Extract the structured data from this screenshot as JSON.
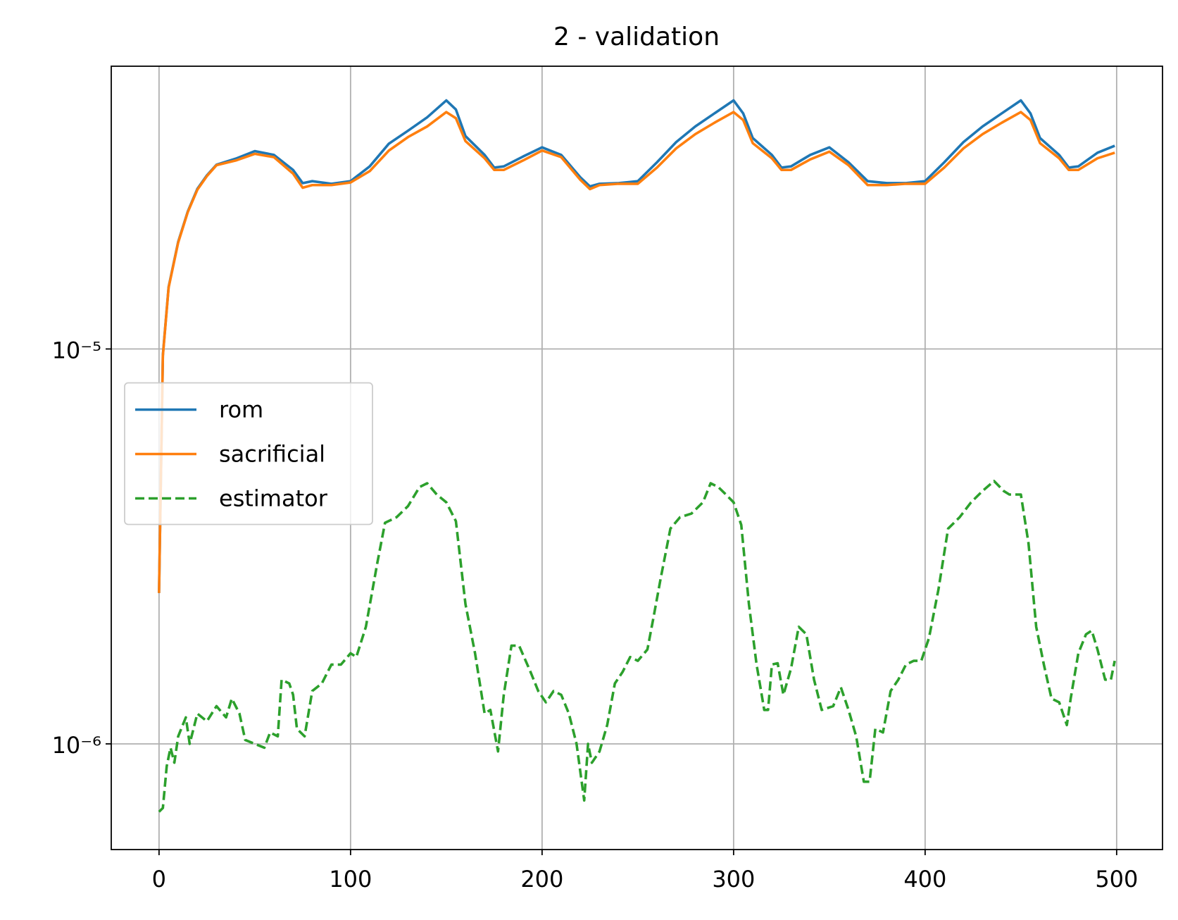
{
  "chart_data": {
    "type": "line",
    "title": "2 - validation",
    "xlim": [
      -24.95,
      523.95
    ],
    "xticks": [
      0,
      100,
      200,
      300,
      400,
      500
    ],
    "ylim": [
      5.4e-07,
      5.2e-05
    ],
    "log_y": true,
    "yticks": [
      {
        "value": 1e-06,
        "label": "10⁻⁶"
      },
      {
        "value": 1e-05,
        "label": "10⁻⁵"
      }
    ],
    "grid": true,
    "legend_loc": "center left",
    "series": [
      {
        "name": "rom",
        "color": "#1f77b4",
        "linestyle": "solid",
        "x": [
          0,
          2,
          5,
          10,
          15,
          20,
          25,
          30,
          40,
          50,
          60,
          70,
          75,
          80,
          90,
          100,
          110,
          120,
          130,
          140,
          150,
          155,
          160,
          170,
          175,
          180,
          190,
          200,
          210,
          220,
          225,
          230,
          240,
          250,
          260,
          270,
          280,
          290,
          300,
          305,
          310,
          320,
          325,
          330,
          340,
          350,
          360,
          370,
          380,
          390,
          400,
          410,
          420,
          430,
          440,
          450,
          455,
          460,
          470,
          475,
          480,
          490,
          499
        ],
        "values": [
          2.41e-06,
          9.65e-06,
          1.435e-05,
          1.868e-05,
          2.228e-05,
          2.543e-05,
          2.752e-05,
          2.928e-05,
          3.033e-05,
          3.17e-05,
          3.1e-05,
          2.84e-05,
          2.63e-05,
          2.66e-05,
          2.62e-05,
          2.66e-05,
          2.9e-05,
          3.31e-05,
          3.57e-05,
          3.86e-05,
          4.26e-05,
          4.04e-05,
          3.46e-05,
          3.1e-05,
          2.88e-05,
          2.9e-05,
          3.07e-05,
          3.24e-05,
          3.1e-05,
          2.72e-05,
          2.58e-05,
          2.62e-05,
          2.63e-05,
          2.66e-05,
          2.97e-05,
          3.34e-05,
          3.66e-05,
          3.95e-05,
          4.26e-05,
          3.95e-05,
          3.42e-05,
          3.1e-05,
          2.88e-05,
          2.9e-05,
          3.1e-05,
          3.24e-05,
          2.97e-05,
          2.66e-05,
          2.63e-05,
          2.63e-05,
          2.66e-05,
          2.97e-05,
          3.34e-05,
          3.66e-05,
          3.95e-05,
          4.26e-05,
          3.95e-05,
          3.42e-05,
          3.1e-05,
          2.88e-05,
          2.9e-05,
          3.14e-05,
          3.27e-05
        ]
      },
      {
        "name": "sacrificial",
        "color": "#ff7f0e",
        "linestyle": "solid",
        "x": [
          0,
          2,
          5,
          10,
          15,
          20,
          25,
          30,
          40,
          50,
          60,
          70,
          75,
          80,
          90,
          100,
          110,
          120,
          130,
          140,
          150,
          155,
          160,
          170,
          175,
          180,
          190,
          200,
          210,
          220,
          225,
          230,
          240,
          250,
          260,
          270,
          280,
          290,
          300,
          305,
          310,
          320,
          325,
          330,
          340,
          350,
          360,
          370,
          380,
          390,
          400,
          410,
          420,
          430,
          440,
          450,
          455,
          460,
          470,
          475,
          480,
          490,
          499
        ],
        "values": [
          2.41e-06,
          9.6e-06,
          1.43e-05,
          1.86e-05,
          2.22e-05,
          2.53e-05,
          2.74e-05,
          2.92e-05,
          3e-05,
          3.12e-05,
          3.06e-05,
          2.78e-05,
          2.56e-05,
          2.6e-05,
          2.6e-05,
          2.64e-05,
          2.82e-05,
          3.18e-05,
          3.44e-05,
          3.66e-05,
          3.98e-05,
          3.84e-05,
          3.36e-05,
          3.04e-05,
          2.84e-05,
          2.84e-05,
          3e-05,
          3.18e-05,
          3.06e-05,
          2.68e-05,
          2.54e-05,
          2.6e-05,
          2.62e-05,
          2.62e-05,
          2.88e-05,
          3.22e-05,
          3.5e-05,
          3.74e-05,
          3.98e-05,
          3.8e-05,
          3.32e-05,
          3.04e-05,
          2.84e-05,
          2.84e-05,
          3.02e-05,
          3.16e-05,
          2.92e-05,
          2.6e-05,
          2.6e-05,
          2.62e-05,
          2.62e-05,
          2.88e-05,
          3.22e-05,
          3.5e-05,
          3.74e-05,
          3.98e-05,
          3.8e-05,
          3.32e-05,
          3.04e-05,
          2.84e-05,
          2.84e-05,
          3.04e-05,
          3.14e-05
        ]
      },
      {
        "name": "estimator",
        "color": "#2ca02c",
        "linestyle": "dashed",
        "x": [
          0,
          2,
          4,
          6,
          8,
          10,
          14,
          16,
          20,
          25,
          30,
          35,
          38,
          42,
          45,
          50,
          55,
          58,
          62,
          64,
          68,
          70,
          72,
          76,
          80,
          85,
          90,
          95,
          100,
          103,
          108,
          114,
          118,
          124,
          130,
          136,
          140,
          145,
          150,
          155,
          160,
          165,
          170,
          173,
          177,
          180,
          184,
          188,
          194,
          198,
          202,
          206,
          210,
          214,
          218,
          222,
          224,
          226,
          230,
          234,
          238,
          242,
          246,
          250,
          255,
          258,
          262,
          267,
          272,
          278,
          284,
          288,
          292,
          296,
          300,
          304,
          308,
          312,
          316,
          318,
          320,
          323,
          326,
          330,
          334,
          338,
          342,
          346,
          352,
          356,
          360,
          364,
          368,
          371,
          374,
          378,
          382,
          386,
          390,
          394,
          398,
          402,
          407,
          412,
          418,
          424,
          430,
          436,
          441,
          444,
          448,
          450,
          454,
          458,
          462,
          466,
          470,
          474,
          476,
          480,
          484,
          487,
          490,
          494,
          497,
          499
        ],
        "values": [
          6.73e-07,
          6.88e-07,
          8.77e-07,
          9.78e-07,
          8.96e-07,
          1.045e-06,
          1.167e-06,
          1e-06,
          1.193e-06,
          1.141e-06,
          1.246e-06,
          1.167e-06,
          1.302e-06,
          1.193e-06,
          1.023e-06,
          1e-06,
          9.78e-07,
          1.069e-06,
          1.045e-06,
          1.454e-06,
          1.422e-06,
          1.331e-06,
          1.092e-06,
          1.045e-06,
          1.361e-06,
          1.422e-06,
          1.588e-06,
          1.588e-06,
          1.696e-06,
          1.659e-06,
          1.979e-06,
          2.877e-06,
          3.63e-06,
          3.748e-06,
          4e-06,
          4.47e-06,
          4.57e-06,
          4.28e-06,
          4.09e-06,
          3.664e-06,
          2.259e-06,
          1.696e-06,
          1.193e-06,
          1.219e-06,
          9.57e-07,
          1.331e-06,
          1.773e-06,
          1.773e-06,
          1.52e-06,
          1.361e-06,
          1.274e-06,
          1.361e-06,
          1.331e-06,
          1.193e-06,
          1e-06,
          7.19e-07,
          1e-06,
          8.96e-07,
          9.57e-07,
          1.116e-06,
          1.422e-06,
          1.52e-06,
          1.659e-06,
          1.623e-06,
          1.734e-06,
          2.068e-06,
          2.636e-06,
          3.508e-06,
          3.748e-06,
          3.83e-06,
          4.09e-06,
          4.57e-06,
          4.47e-06,
          4.28e-06,
          4.09e-06,
          3.585e-06,
          2.259e-06,
          1.588e-06,
          1.219e-06,
          1.219e-06,
          1.588e-06,
          1.6e-06,
          1.331e-06,
          1.553e-06,
          1.979e-06,
          1.894e-06,
          1.454e-06,
          1.219e-06,
          1.246e-06,
          1.391e-06,
          1.219e-06,
          1.045e-06,
          8.02e-07,
          8.02e-07,
          1.092e-06,
          1.069e-06,
          1.361e-06,
          1.454e-06,
          1.588e-06,
          1.623e-06,
          1.623e-06,
          1.853e-06,
          2.466e-06,
          3.508e-06,
          3.748e-06,
          4.09e-06,
          4.37e-06,
          4.63e-06,
          4.37e-06,
          4.28e-06,
          4.28e-06,
          4.28e-06,
          3.214e-06,
          1.979e-06,
          1.588e-06,
          1.302e-06,
          1.274e-06,
          1.116e-06,
          1.302e-06,
          1.696e-06,
          1.894e-06,
          1.936e-06,
          1.734e-06,
          1.454e-06,
          1.454e-06,
          1.623e-06
        ]
      }
    ]
  }
}
